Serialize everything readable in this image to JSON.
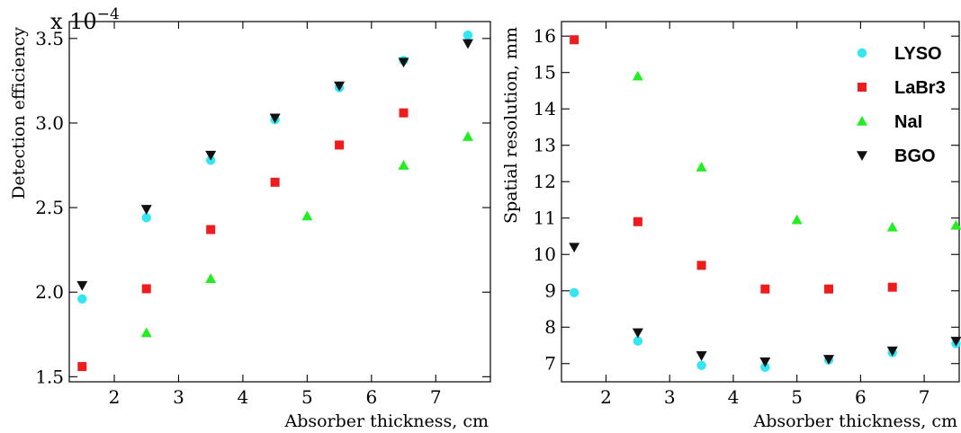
{
  "chart_data": [
    {
      "type": "scatter",
      "title": "",
      "xlabel": "Absorber thickness, cm",
      "ylabel": "Detection efficiency",
      "y_multiplier": "x 10",
      "y_multiplier_exp": "−4",
      "xlim": [
        1.3,
        7.85
      ],
      "ylim": [
        1.47,
        3.6
      ],
      "xticks": [
        {
          "v": 2,
          "label": "2"
        },
        {
          "v": 3,
          "label": "3"
        },
        {
          "v": 4,
          "label": "4"
        },
        {
          "v": 5,
          "label": "5"
        },
        {
          "v": 6,
          "label": "6"
        },
        {
          "v": 7,
          "label": "7"
        }
      ],
      "yticks": [
        {
          "v": 1.5,
          "label": "1.5"
        },
        {
          "v": 2.0,
          "label": "2.0"
        },
        {
          "v": 2.5,
          "label": "2.5"
        },
        {
          "v": 3.0,
          "label": "3.0"
        },
        {
          "v": 3.5,
          "label": "3.5"
        }
      ],
      "grid": false,
      "series": [
        {
          "name": "LYSO",
          "marker": "circle",
          "color": "#33e6f2",
          "points": [
            [
              1.5,
              1.96
            ],
            [
              2.5,
              2.44
            ],
            [
              3.5,
              2.78
            ],
            [
              4.5,
              3.02
            ],
            [
              5.5,
              3.21
            ],
            [
              6.5,
              3.37
            ],
            [
              7.5,
              3.52
            ]
          ]
        },
        {
          "name": "LaBr3",
          "marker": "square",
          "color": "#ee1c1c",
          "points": [
            [
              1.5,
              1.56
            ],
            [
              2.5,
              2.02
            ],
            [
              3.5,
              2.37
            ],
            [
              4.5,
              2.65
            ],
            [
              5.5,
              2.87
            ],
            [
              6.5,
              3.06
            ]
          ]
        },
        {
          "name": "NaI",
          "marker": "triangle-up",
          "color": "#22ee22",
          "points": [
            [
              2.5,
              1.76
            ],
            [
              3.5,
              2.08
            ],
            [
              5.0,
              2.45
            ],
            [
              6.5,
              2.75
            ],
            [
              7.5,
              2.92
            ]
          ]
        },
        {
          "name": "BGO",
          "marker": "triangle-down",
          "color": "#111111",
          "points": [
            [
              1.5,
              2.04
            ],
            [
              2.5,
              2.49
            ],
            [
              3.5,
              2.81
            ],
            [
              4.5,
              3.03
            ],
            [
              5.5,
              3.22
            ],
            [
              6.5,
              3.36
            ],
            [
              7.5,
              3.47
            ]
          ]
        }
      ]
    },
    {
      "type": "scatter",
      "title": "",
      "xlabel": "Absorber thickness, cm",
      "ylabel": "Spatial resolution, mm",
      "xlim": [
        1.3,
        7.55
      ],
      "ylim": [
        6.5,
        16.4
      ],
      "xticks": [
        {
          "v": 2,
          "label": "2"
        },
        {
          "v": 3,
          "label": "3"
        },
        {
          "v": 4,
          "label": "4"
        },
        {
          "v": 5,
          "label": "5"
        },
        {
          "v": 6,
          "label": "6"
        },
        {
          "v": 7,
          "label": "7"
        }
      ],
      "yticks": [
        {
          "v": 7,
          "label": "7"
        },
        {
          "v": 8,
          "label": "8"
        },
        {
          "v": 9,
          "label": "9"
        },
        {
          "v": 10,
          "label": "10"
        },
        {
          "v": 11,
          "label": "11"
        },
        {
          "v": 12,
          "label": "12"
        },
        {
          "v": 13,
          "label": "13"
        },
        {
          "v": 14,
          "label": "14"
        },
        {
          "v": 15,
          "label": "15"
        },
        {
          "v": 16,
          "label": "16"
        }
      ],
      "grid": false,
      "legend_position": "top-right",
      "series": [
        {
          "name": "LYSO",
          "marker": "circle",
          "color": "#33e6f2",
          "points": [
            [
              1.5,
              8.95
            ],
            [
              2.5,
              7.62
            ],
            [
              3.5,
              6.95
            ],
            [
              4.5,
              6.9
            ],
            [
              5.5,
              7.1
            ],
            [
              6.5,
              7.3
            ],
            [
              7.5,
              7.55
            ]
          ]
        },
        {
          "name": "LaBr3",
          "marker": "square",
          "color": "#ee1c1c",
          "points": [
            [
              1.5,
              15.9
            ],
            [
              2.5,
              10.9
            ],
            [
              3.5,
              9.7
            ],
            [
              4.5,
              9.05
            ],
            [
              5.5,
              9.05
            ],
            [
              6.5,
              9.1
            ]
          ]
        },
        {
          "name": "NaI",
          "marker": "triangle-up",
          "color": "#22ee22",
          "points": [
            [
              2.5,
              14.9
            ],
            [
              3.5,
              12.4
            ],
            [
              5.0,
              10.95
            ],
            [
              6.5,
              10.75
            ],
            [
              7.5,
              10.8
            ]
          ]
        },
        {
          "name": "BGO",
          "marker": "triangle-down",
          "color": "#111111",
          "points": [
            [
              1.5,
              10.2
            ],
            [
              2.5,
              7.85
            ],
            [
              3.5,
              7.22
            ],
            [
              4.5,
              7.05
            ],
            [
              5.5,
              7.12
            ],
            [
              6.5,
              7.35
            ],
            [
              7.5,
              7.62
            ]
          ]
        }
      ]
    }
  ]
}
